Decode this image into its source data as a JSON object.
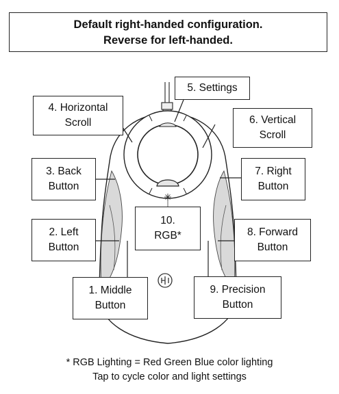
{
  "header": {
    "line1": "Default right-handed configuration.",
    "line2": "Reverse for left-handed."
  },
  "labels": {
    "middle_button": [
      "1. Middle",
      "Button"
    ],
    "left_button": [
      "2. Left",
      "Button"
    ],
    "back_button": [
      "3. Back",
      "Button"
    ],
    "horizontal_scroll": [
      "4. Horizontal",
      "Scroll"
    ],
    "settings": [
      "5. Settings"
    ],
    "vertical_scroll": [
      "6. Vertical",
      "Scroll"
    ],
    "right_button": [
      "7. Right",
      "Button"
    ],
    "forward_button": [
      "8. Forward",
      "Button"
    ],
    "precision_button": [
      "9. Precision",
      "Button"
    ],
    "rgb": [
      "10.",
      "RGB*"
    ]
  },
  "footnote": {
    "line1": "* RGB Lighting = Red Green Blue color lighting",
    "line2": "Tap to cycle color and light settings"
  },
  "colors": {
    "line": "#222222",
    "body_shade": "#d9d9d9",
    "background": "#ffffff"
  }
}
